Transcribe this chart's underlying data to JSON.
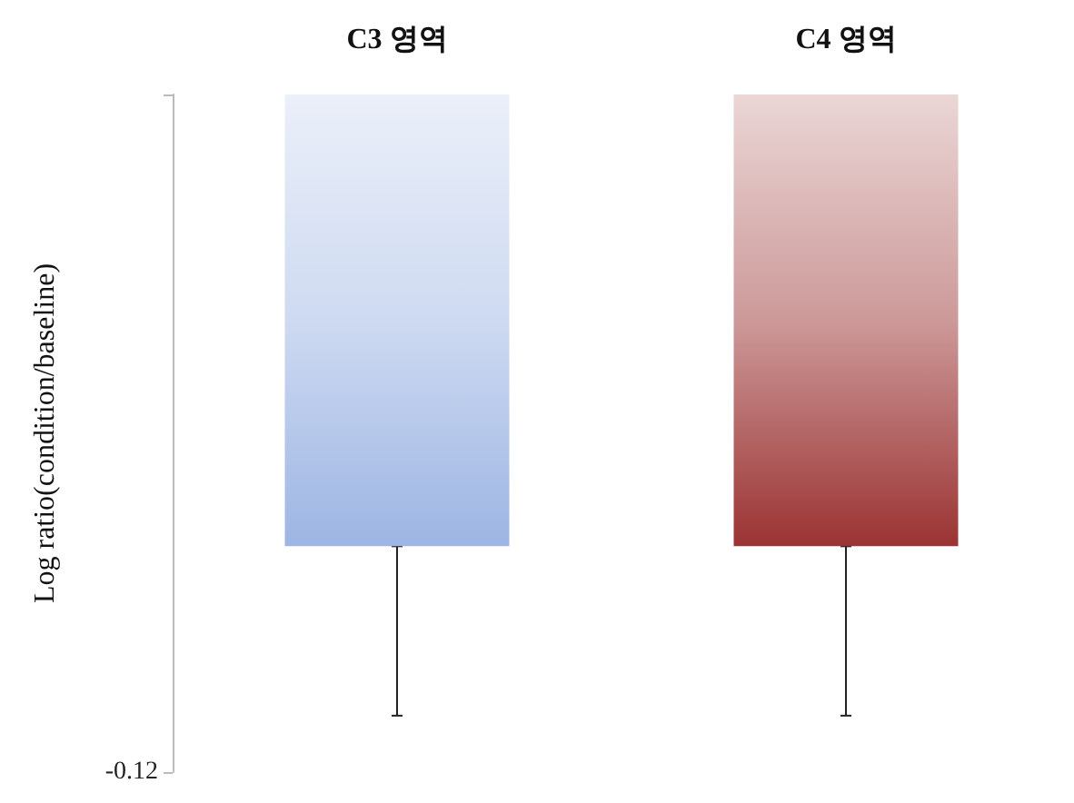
{
  "chart_data": {
    "type": "bar",
    "categories": [
      "C3 영역",
      "C4 영역"
    ],
    "values": [
      -0.08,
      -0.08
    ],
    "colors": [
      "#9db5e3",
      "#9b3333"
    ],
    "errors": [
      [
        -0.11,
        -0.08
      ],
      [
        -0.11,
        -0.08
      ]
    ],
    "ylabel": "Log ratio(condition/baseline)",
    "ylim": [
      -0.12,
      0
    ],
    "yticks": [
      -0.12,
      {
        "value": 0,
        "label": null
      }
    ],
    "grid": false
  }
}
